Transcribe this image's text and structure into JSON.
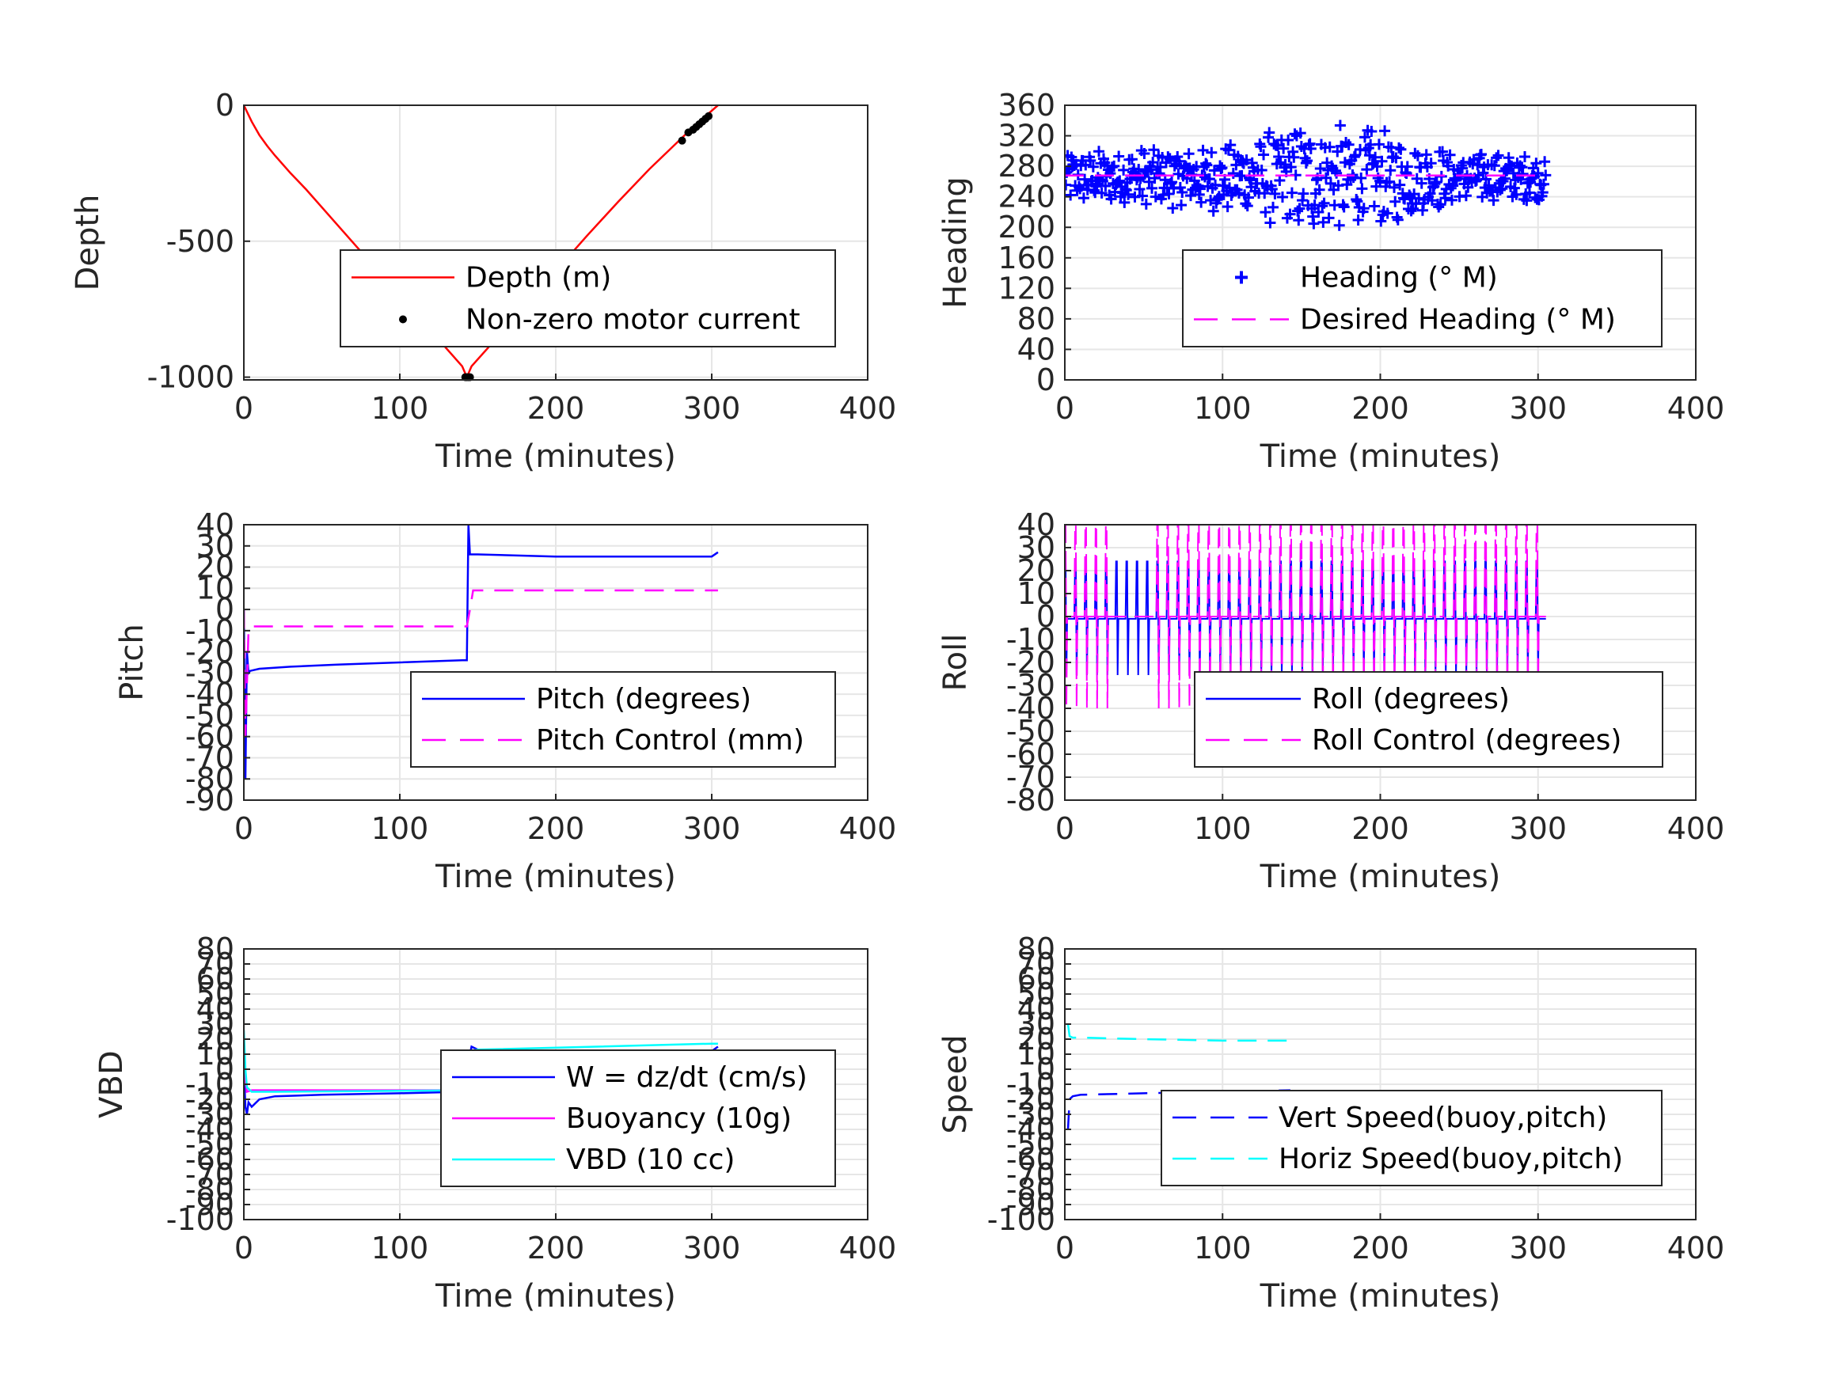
{
  "chart_data": [
    {
      "type": "line",
      "xlabel": "Time (minutes)",
      "ylabel": "Depth",
      "xlim": [
        0,
        400
      ],
      "ylim": [
        -1010,
        0
      ],
      "xticks": [
        "0",
        "100",
        "200",
        "300",
        "400"
      ],
      "yticks": [
        {
          "v": 0,
          "t": "0"
        },
        {
          "v": -500,
          "t": "-500"
        },
        {
          "v": -1000,
          "t": "-1000"
        }
      ],
      "grid": true,
      "legend_position": "center-right",
      "series": [
        {
          "name": "Depth (m)",
          "color": "#ff0000",
          "style": "solid",
          "x": [
            0,
            5,
            10,
            15,
            20,
            30,
            40,
            60,
            80,
            100,
            120,
            140,
            143,
            146,
            160,
            180,
            200,
            220,
            240,
            260,
            280,
            290,
            300,
            304
          ],
          "y": [
            0,
            -60,
            -110,
            -150,
            -185,
            -250,
            -310,
            -440,
            -570,
            -700,
            -830,
            -960,
            -1000,
            -960,
            -870,
            -740,
            -610,
            -480,
            -355,
            -235,
            -125,
            -70,
            -20,
            0
          ]
        },
        {
          "name": "Non-zero motor current",
          "color": "#000000",
          "marker": "dot",
          "x_scatter": [
            103,
            142,
            143,
            144,
            145,
            281,
            285,
            288,
            290,
            292,
            294,
            296,
            298
          ],
          "y_scatter": [
            -785,
            -1000,
            -1000,
            -1000,
            -1000,
            -130,
            -100,
            -90,
            -80,
            -70,
            -60,
            -50,
            -40
          ]
        }
      ]
    },
    {
      "type": "scatter",
      "xlabel": "Time (minutes)",
      "ylabel": "Heading",
      "xlim": [
        0,
        400
      ],
      "ylim": [
        0,
        360
      ],
      "xticks": [
        "0",
        "100",
        "200",
        "300",
        "400"
      ],
      "yticks": [
        {
          "v": 0,
          "t": "0"
        },
        {
          "v": 40,
          "t": "40"
        },
        {
          "v": 80,
          "t": "80"
        },
        {
          "v": 120,
          "t": "120"
        },
        {
          "v": 160,
          "t": "160"
        },
        {
          "v": 200,
          "t": "200"
        },
        {
          "v": 240,
          "t": "240"
        },
        {
          "v": 280,
          "t": "280"
        },
        {
          "v": 320,
          "t": "320"
        },
        {
          "v": 360,
          "t": "360"
        }
      ],
      "grid": true,
      "legend_position": "center-right",
      "series": [
        {
          "name": "Heading (° M)",
          "color": "#0000ff",
          "marker": "plus",
          "x_range": [
            0,
            305
          ],
          "band_center": 265,
          "band_halfwidth": [
            [
              0,
              35
            ],
            [
              100,
              45
            ],
            [
              150,
              75
            ],
            [
              200,
              65
            ],
            [
              250,
              35
            ],
            [
              305,
              30
            ]
          ]
        },
        {
          "name": "Desired Heading (° M)",
          "color": "#ff00ff",
          "style": "dashed",
          "x": [
            0,
            305
          ],
          "y": [
            268,
            268
          ]
        }
      ]
    },
    {
      "type": "line",
      "xlabel": "Time (minutes)",
      "ylabel": "Pitch",
      "xlim": [
        0,
        400
      ],
      "ylim": [
        -90,
        40
      ],
      "xticks": [
        "0",
        "100",
        "200",
        "300",
        "400"
      ],
      "yticks": [
        {
          "v": 40,
          "t": "40"
        },
        {
          "v": 30,
          "t": "30"
        },
        {
          "v": 20,
          "t": "20"
        },
        {
          "v": 10,
          "t": "10"
        },
        {
          "v": 0,
          "t": "0"
        },
        {
          "v": -10,
          "t": "-10"
        },
        {
          "v": -20,
          "t": "-20"
        },
        {
          "v": -30,
          "t": "-30"
        },
        {
          "v": -40,
          "t": "-40"
        },
        {
          "v": -50,
          "t": "-50"
        },
        {
          "v": -60,
          "t": "-60"
        },
        {
          "v": -70,
          "t": "-70"
        },
        {
          "v": -80,
          "t": "-80"
        },
        {
          "v": -90,
          "t": "-90"
        }
      ],
      "grid": true,
      "legend_position": "bottom-right",
      "series": [
        {
          "name": "Pitch (degrees)",
          "color": "#0000ff",
          "style": "solid",
          "x": [
            0,
            1,
            2,
            3,
            4,
            10,
            30,
            60,
            100,
            140,
            143,
            144,
            145,
            150,
            200,
            250,
            300,
            304
          ],
          "y": [
            0,
            -80,
            -20,
            -30,
            -29,
            -28,
            -27,
            -26,
            -25,
            -24,
            -24,
            40,
            26,
            26,
            25,
            25,
            25,
            27
          ]
        },
        {
          "name": "Pitch Control (mm)",
          "color": "#ff00ff",
          "style": "dashed",
          "x": [
            0,
            1,
            3,
            5,
            143,
            145,
            147,
            304
          ],
          "y": [
            0,
            -60,
            -10,
            -8,
            -8,
            0,
            9,
            9
          ]
        }
      ]
    },
    {
      "type": "line",
      "xlabel": "Time (minutes)",
      "ylabel": "Roll",
      "xlim": [
        0,
        400
      ],
      "ylim": [
        -80,
        40
      ],
      "xticks": [
        "0",
        "100",
        "200",
        "300",
        "400"
      ],
      "yticks": [
        {
          "v": 40,
          "t": "40"
        },
        {
          "v": 30,
          "t": "30"
        },
        {
          "v": 20,
          "t": "20"
        },
        {
          "v": 10,
          "t": "10"
        },
        {
          "v": 0,
          "t": "0"
        },
        {
          "v": -10,
          "t": "-10"
        },
        {
          "v": -20,
          "t": "-20"
        },
        {
          "v": -30,
          "t": "-30"
        },
        {
          "v": -40,
          "t": "-40"
        },
        {
          "v": -50,
          "t": "-50"
        },
        {
          "v": -60,
          "t": "-60"
        },
        {
          "v": -70,
          "t": "-70"
        },
        {
          "v": -80,
          "t": "-80"
        }
      ],
      "grid": true,
      "legend_position": "bottom-right",
      "series": [
        {
          "name": "Roll (degrees)",
          "color": "#0000ff",
          "style": "solid",
          "x_range": [
            0,
            305
          ],
          "baseline": -1,
          "spike_amplitude": 30
        },
        {
          "name": "Roll Control (degrees)",
          "color": "#ff00ff",
          "style": "dashed",
          "x_range": [
            0,
            305
          ],
          "baseline": 0,
          "spike_amplitude": 40
        }
      ]
    },
    {
      "type": "line",
      "xlabel": "Time (minutes)",
      "ylabel": "VBD",
      "xlim": [
        0,
        400
      ],
      "ylim": [
        -100,
        80
      ],
      "xticks": [
        "0",
        "100",
        "200",
        "300",
        "400"
      ],
      "yticks": [
        {
          "v": 80,
          "t": "80"
        },
        {
          "v": 70,
          "t": "70"
        },
        {
          "v": 60,
          "t": "60"
        },
        {
          "v": 50,
          "t": "50"
        },
        {
          "v": 40,
          "t": "40"
        },
        {
          "v": 30,
          "t": "30"
        },
        {
          "v": 20,
          "t": "20"
        },
        {
          "v": 10,
          "t": "10"
        },
        {
          "v": 0,
          "t": "0"
        },
        {
          "v": -10,
          "t": "-10"
        },
        {
          "v": -20,
          "t": "-20"
        },
        {
          "v": -30,
          "t": "-30"
        },
        {
          "v": -40,
          "t": "-40"
        },
        {
          "v": -50,
          "t": "-50"
        },
        {
          "v": -60,
          "t": "-60"
        },
        {
          "v": -70,
          "t": "-70"
        },
        {
          "v": -80,
          "t": "-80"
        },
        {
          "v": -90,
          "t": "-90"
        },
        {
          "v": -100,
          "t": "-100"
        }
      ],
      "grid": true,
      "legend_position": "center-right",
      "series": [
        {
          "name": "W = dz/dt (cm/s)",
          "color": "#0000ff",
          "style": "solid",
          "x": [
            0,
            1,
            2,
            3,
            5,
            10,
            20,
            50,
            100,
            140,
            143,
            144,
            146,
            150,
            200,
            250,
            290,
            300,
            304
          ],
          "y": [
            0,
            -25,
            -30,
            -22,
            -25,
            -20,
            -18,
            -17,
            -16,
            -15,
            -15,
            5,
            15,
            13,
            12,
            11,
            10,
            12,
            15
          ]
        },
        {
          "name": "Buoyancy (10g)",
          "color": "#ff00ff",
          "style": "solid",
          "x": [
            0,
            2,
            5,
            143,
            145,
            304
          ],
          "y": [
            0,
            -15,
            -14,
            -14,
            12,
            12
          ]
        },
        {
          "name": "VBD (10 cc)",
          "color": "#00ffff",
          "style": "solid",
          "x": [
            0,
            1,
            2,
            5,
            20,
            143,
            145,
            150,
            300,
            304
          ],
          "y": [
            26,
            0,
            -12,
            -15,
            -15,
            -14,
            12,
            13,
            17,
            17
          ]
        }
      ]
    },
    {
      "type": "line",
      "xlabel": "Time (minutes)",
      "ylabel": "Speed",
      "xlim": [
        0,
        400
      ],
      "ylim": [
        -100,
        80
      ],
      "xticks": [
        "0",
        "100",
        "200",
        "300",
        "400"
      ],
      "yticks": [
        {
          "v": 80,
          "t": "80"
        },
        {
          "v": 70,
          "t": "70"
        },
        {
          "v": 60,
          "t": "60"
        },
        {
          "v": 50,
          "t": "50"
        },
        {
          "v": 40,
          "t": "40"
        },
        {
          "v": 30,
          "t": "30"
        },
        {
          "v": 20,
          "t": "20"
        },
        {
          "v": 10,
          "t": "10"
        },
        {
          "v": 0,
          "t": "0"
        },
        {
          "v": -10,
          "t": "-10"
        },
        {
          "v": -20,
          "t": "-20"
        },
        {
          "v": -30,
          "t": "-30"
        },
        {
          "v": -40,
          "t": "-40"
        },
        {
          "v": -50,
          "t": "-50"
        },
        {
          "v": -60,
          "t": "-60"
        },
        {
          "v": -70,
          "t": "-70"
        },
        {
          "v": -80,
          "t": "-80"
        },
        {
          "v": -90,
          "t": "-90"
        },
        {
          "v": -100,
          "t": "-100"
        }
      ],
      "grid": true,
      "legend_position": "bottom-right",
      "series": [
        {
          "name": "Vert Speed(buoy,pitch)",
          "color": "#0000ff",
          "style": "dashed",
          "x": [
            2,
            3,
            5,
            10,
            50,
            100,
            143
          ],
          "y": [
            -40,
            -20,
            -18,
            -17,
            -16,
            -15,
            -14
          ]
        },
        {
          "name": "Horiz Speed(buoy,pitch)",
          "color": "#00ffff",
          "style": "dashed",
          "x": [
            2,
            3,
            5,
            10,
            50,
            100,
            143
          ],
          "y": [
            30,
            22,
            21,
            21,
            20,
            19,
            19
          ]
        }
      ]
    }
  ]
}
